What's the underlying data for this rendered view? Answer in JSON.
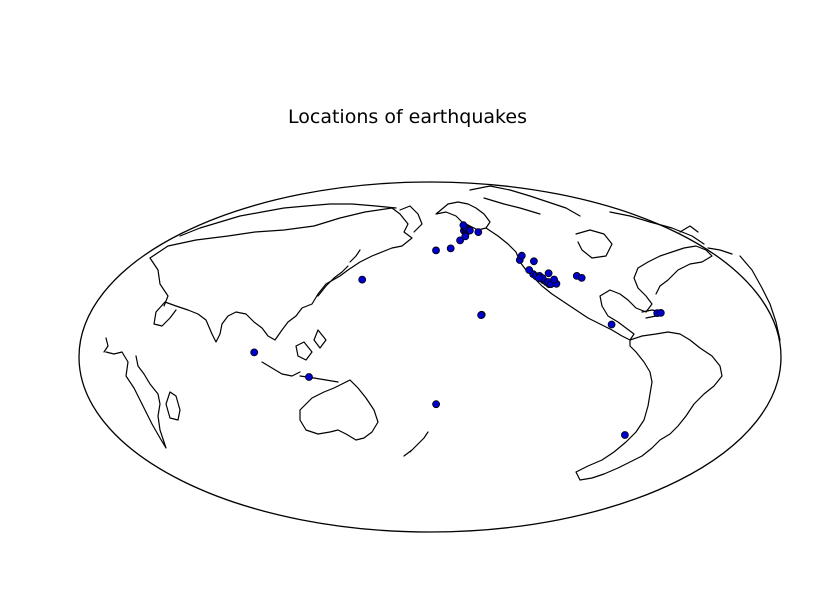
{
  "title": "Locations of earthquakes",
  "map": {
    "projection": "hammer",
    "central_longitude": -180,
    "boundary_color": "#000000",
    "coastline_color": "#000000",
    "marker_color": "#0000cc"
  },
  "earthquakes": [
    {
      "lon": -152,
      "lat": 61
    },
    {
      "lon": -151,
      "lat": 60
    },
    {
      "lon": -150,
      "lat": 61
    },
    {
      "lon": -149,
      "lat": 62
    },
    {
      "lon": -153,
      "lat": 58
    },
    {
      "lon": -147,
      "lat": 61
    },
    {
      "lon": -150,
      "lat": 63
    },
    {
      "lon": -150,
      "lat": 64
    },
    {
      "lon": -141,
      "lat": 60
    },
    {
      "lon": -158,
      "lat": 56
    },
    {
      "lon": -166,
      "lat": 52
    },
    {
      "lon": -176,
      "lat": 51
    },
    {
      "lon": -155,
      "lat": 19.5
    },
    {
      "lon": -155.3,
      "lat": 19.4
    },
    {
      "lon": -122,
      "lat": 38
    },
    {
      "lon": -121,
      "lat": 37
    },
    {
      "lon": -118,
      "lat": 35
    },
    {
      "lon": -117,
      "lat": 34
    },
    {
      "lon": -116,
      "lat": 33
    },
    {
      "lon": -116,
      "lat": 34
    },
    {
      "lon": -115,
      "lat": 33
    },
    {
      "lon": -119,
      "lat": 37
    },
    {
      "lon": -118,
      "lat": 36
    },
    {
      "lon": -120,
      "lat": 36
    },
    {
      "lon": -112,
      "lat": 33
    },
    {
      "lon": -112,
      "lat": 35
    },
    {
      "lon": -113,
      "lat": 38
    },
    {
      "lon": -123,
      "lat": 40
    },
    {
      "lon": -125,
      "lat": 45
    },
    {
      "lon": -122,
      "lat": 47
    },
    {
      "lon": -117,
      "lat": 44
    },
    {
      "lon": -98,
      "lat": 36
    },
    {
      "lon": -96,
      "lat": 35
    },
    {
      "lon": -66,
      "lat": 18
    },
    {
      "lon": -64,
      "lat": 18
    },
    {
      "lon": -92,
      "lat": 14
    },
    {
      "lon": -72,
      "lat": -33
    },
    {
      "lon": 143,
      "lat": 36
    },
    {
      "lon": 97,
      "lat": 2
    },
    {
      "lon": 123,
      "lat": -9
    },
    {
      "lon": -177,
      "lat": -22
    }
  ]
}
